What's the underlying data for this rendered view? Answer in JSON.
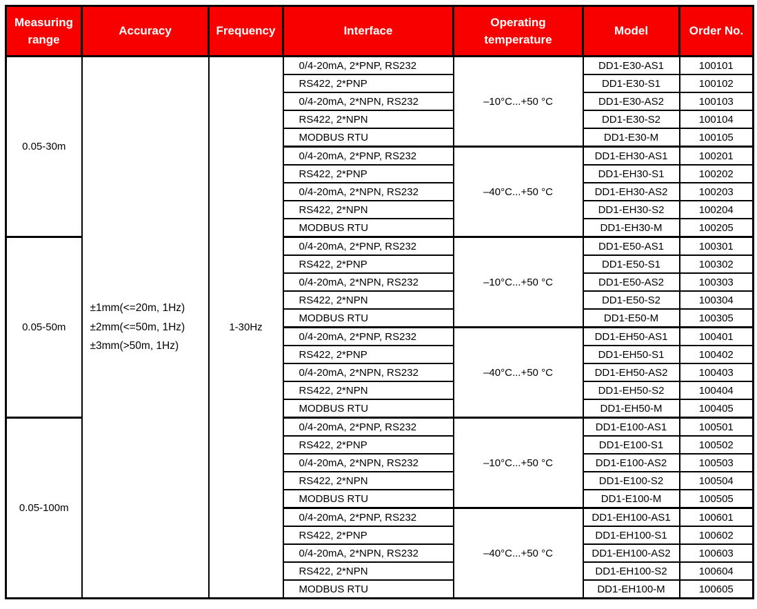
{
  "header": {
    "columns": [
      "Measuring range",
      "Accuracy",
      "Frequency",
      "Interface",
      "Operating temperature",
      "Model",
      "Order No."
    ]
  },
  "accuracy_lines": [
    "±1mm(<=20m, 1Hz)",
    "±2mm(<=50m, 1Hz)",
    "±3mm(>50m, 1Hz)"
  ],
  "frequency": "1-30Hz",
  "colors": {
    "header_bg": "#f90000",
    "header_text": "#ffffff",
    "border": "#000000",
    "body_text": "#000000"
  },
  "groups": [
    {
      "range": "0.05-30m",
      "subgroups": [
        {
          "temperature": "–10°C...+50 °C",
          "rows": [
            {
              "interface": "0/4-20mA, 2*PNP, RS232",
              "model": "DD1-E30-AS1",
              "order": "100101"
            },
            {
              "interface": "RS422, 2*PNP",
              "model": "DD1-E30-S1",
              "order": "100102"
            },
            {
              "interface": "0/4-20mA, 2*NPN, RS232",
              "model": "DD1-E30-AS2",
              "order": "100103"
            },
            {
              "interface": "RS422, 2*NPN",
              "model": "DD1-E30-S2",
              "order": "100104"
            },
            {
              "interface": "MODBUS RTU",
              "model": "DD1-E30-M",
              "order": "100105"
            }
          ]
        },
        {
          "temperature": "–40°C...+50 °C",
          "rows": [
            {
              "interface": "0/4-20mA, 2*PNP, RS232",
              "model": "DD1-EH30-AS1",
              "order": "100201"
            },
            {
              "interface": "RS422, 2*PNP",
              "model": "DD1-EH30-S1",
              "order": "100202"
            },
            {
              "interface": "0/4-20mA, 2*NPN, RS232",
              "model": "DD1-EH30-AS2",
              "order": "100203"
            },
            {
              "interface": "RS422, 2*NPN",
              "model": "DD1-EH30-S2",
              "order": "100204"
            },
            {
              "interface": "MODBUS RTU",
              "model": "DD1-EH30-M",
              "order": "100205"
            }
          ]
        }
      ]
    },
    {
      "range": "0.05-50m",
      "subgroups": [
        {
          "temperature": "–10°C...+50 °C",
          "rows": [
            {
              "interface": "0/4-20mA, 2*PNP, RS232",
              "model": "DD1-E50-AS1",
              "order": "100301"
            },
            {
              "interface": "RS422, 2*PNP",
              "model": "DD1-E50-S1",
              "order": "100302"
            },
            {
              "interface": "0/4-20mA, 2*NPN, RS232",
              "model": "DD1-E50-AS2",
              "order": "100303"
            },
            {
              "interface": "RS422, 2*NPN",
              "model": "DD1-E50-S2",
              "order": "100304"
            },
            {
              "interface": "MODBUS RTU",
              "model": "DD1-E50-M",
              "order": "100305"
            }
          ]
        },
        {
          "temperature": "–40°C...+50 °C",
          "rows": [
            {
              "interface": "0/4-20mA, 2*PNP, RS232",
              "model": "DD1-EH50-AS1",
              "order": "100401"
            },
            {
              "interface": "RS422, 2*PNP",
              "model": "DD1-EH50-S1",
              "order": "100402"
            },
            {
              "interface": "0/4-20mA, 2*NPN, RS232",
              "model": "DD1-EH50-AS2",
              "order": "100403"
            },
            {
              "interface": "RS422, 2*NPN",
              "model": "DD1-EH50-S2",
              "order": "100404"
            },
            {
              "interface": "MODBUS RTU",
              "model": "DD1-EH50-M",
              "order": "100405"
            }
          ]
        }
      ]
    },
    {
      "range": "0.05-100m",
      "subgroups": [
        {
          "temperature": "–10°C...+50 °C",
          "rows": [
            {
              "interface": "0/4-20mA, 2*PNP, RS232",
              "model": "DD1-E100-AS1",
              "order": "100501"
            },
            {
              "interface": "RS422, 2*PNP",
              "model": "DD1-E100-S1",
              "order": "100502"
            },
            {
              "interface": "0/4-20mA, 2*NPN, RS232",
              "model": "DD1-E100-AS2",
              "order": "100503"
            },
            {
              "interface": "RS422, 2*NPN",
              "model": "DD1-E100-S2",
              "order": "100504"
            },
            {
              "interface": "MODBUS RTU",
              "model": "DD1-E100-M",
              "order": "100505"
            }
          ]
        },
        {
          "temperature": "–40°C...+50 °C",
          "rows": [
            {
              "interface": "0/4-20mA, 2*PNP, RS232",
              "model": "DD1-EH100-AS1",
              "order": "100601"
            },
            {
              "interface": "RS422, 2*PNP",
              "model": "DD1-EH100-S1",
              "order": "100602"
            },
            {
              "interface": "0/4-20mA, 2*NPN, RS232",
              "model": "DD1-EH100-AS2",
              "order": "100603"
            },
            {
              "interface": "RS422, 2*NPN",
              "model": "DD1-EH100-S2",
              "order": "100604"
            },
            {
              "interface": "MODBUS RTU",
              "model": "DD1-EH100-M",
              "order": "100605"
            }
          ]
        }
      ]
    }
  ]
}
